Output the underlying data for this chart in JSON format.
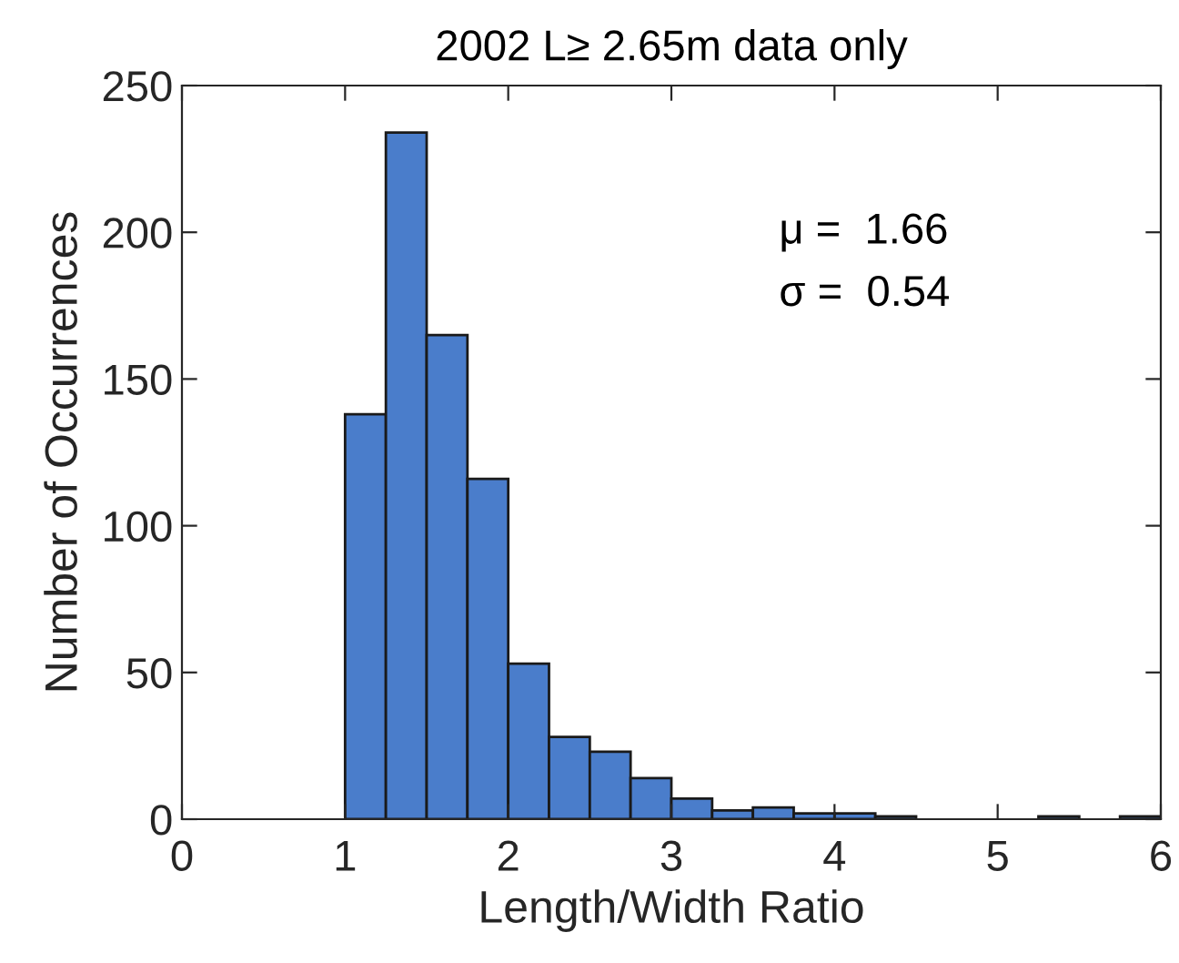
{
  "chart_data": {
    "type": "histogram",
    "title": "2002 L≥ 2.65m data only",
    "xlabel": "Length/Width Ratio",
    "ylabel": "Number of Occurrences",
    "bins": [
      1.0,
      1.25,
      1.5,
      1.75,
      2.0,
      2.25,
      2.5,
      2.75,
      3.0,
      3.25,
      3.5,
      3.75,
      4.0,
      4.25,
      4.5,
      4.75,
      5.0,
      5.25,
      5.5,
      5.75,
      6.0
    ],
    "values": [
      138,
      234,
      165,
      116,
      53,
      28,
      23,
      14,
      7,
      3,
      4,
      2,
      2,
      1,
      0,
      0,
      0,
      1,
      0,
      1
    ],
    "color": "#4a7dcb",
    "xlim": [
      0,
      6
    ],
    "xticks": [
      0,
      1,
      2,
      3,
      4,
      5,
      6
    ],
    "ylim": [
      0,
      250
    ],
    "yticks": [
      0,
      50,
      100,
      150,
      200,
      250
    ],
    "annotations": [
      "μ =  1.66",
      "σ =  0.54"
    ],
    "grid": false,
    "legend": false
  }
}
